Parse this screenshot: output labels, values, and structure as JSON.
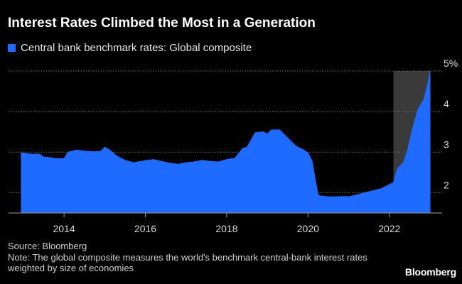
{
  "title": "Interest Rates Climbed the Most in a Generation",
  "brand": "Bloomberg",
  "footer": {
    "source": "Source: Bloomberg",
    "note": "Note: The global composite measures the world's benchmark central-bank interest rates weighted by size of economies"
  },
  "colors": {
    "background": "#000000",
    "series": "#1f6bff",
    "highlight": "#3a3a3a",
    "gridline": "#707070",
    "axis": "#9a9a9a",
    "text": "#d9d9d9"
  },
  "chart_data": {
    "type": "area",
    "title": "Interest Rates Climbed the Most in a Generation",
    "xlabel": "",
    "ylabel": "",
    "xlim": [
      2012.9,
      2023.1
    ],
    "ylim": [
      1.5,
      5.0
    ],
    "grid": true,
    "gridlines": [
      2,
      3,
      4,
      5
    ],
    "yticks": [
      {
        "value": 5,
        "label": "5%"
      },
      {
        "value": 4,
        "label": "4"
      },
      {
        "value": 3,
        "label": "3"
      },
      {
        "value": 2,
        "label": "2"
      }
    ],
    "xticks": [
      {
        "value": 2014,
        "label": "2014"
      },
      {
        "value": 2016,
        "label": "2016"
      },
      {
        "value": 2018,
        "label": "2018"
      },
      {
        "value": 2020,
        "label": "2020"
      },
      {
        "value": 2022,
        "label": "2022"
      }
    ],
    "highlight_range": [
      2022.1,
      2023.0
    ],
    "legend_placement": "top-left",
    "series": [
      {
        "name": "Central bank benchmark rates: Global composite",
        "x": [
          2012.95,
          2013.2,
          2013.4,
          2013.5,
          2013.7,
          2013.8,
          2014.0,
          2014.1,
          2014.3,
          2014.5,
          2014.7,
          2014.9,
          2015.0,
          2015.1,
          2015.3,
          2015.5,
          2015.7,
          2016.0,
          2016.2,
          2016.4,
          2016.6,
          2016.8,
          2017.0,
          2017.2,
          2017.4,
          2017.6,
          2017.8,
          2018.0,
          2018.2,
          2018.4,
          2018.5,
          2018.7,
          2018.9,
          2019.0,
          2019.1,
          2019.3,
          2019.5,
          2019.7,
          2019.9,
          2020.0,
          2020.1,
          2020.2,
          2020.25,
          2020.3,
          2020.5,
          2020.7,
          2020.9,
          2021.0,
          2021.2,
          2021.4,
          2021.6,
          2021.8,
          2022.0,
          2022.1,
          2022.2,
          2022.35,
          2022.45,
          2022.55,
          2022.7,
          2022.85,
          2022.95,
          2023.0
        ],
        "values": [
          2.98,
          2.95,
          2.95,
          2.88,
          2.86,
          2.84,
          2.84,
          3.0,
          3.05,
          3.03,
          3.01,
          3.02,
          3.12,
          3.07,
          2.9,
          2.8,
          2.74,
          2.79,
          2.82,
          2.77,
          2.73,
          2.7,
          2.74,
          2.76,
          2.8,
          2.77,
          2.76,
          2.82,
          2.85,
          3.1,
          3.12,
          3.48,
          3.5,
          3.45,
          3.55,
          3.55,
          3.35,
          3.15,
          3.05,
          2.98,
          2.78,
          2.2,
          1.95,
          1.92,
          1.9,
          1.9,
          1.91,
          1.9,
          1.95,
          2.0,
          2.05,
          2.1,
          2.2,
          2.25,
          2.6,
          2.75,
          3.05,
          3.5,
          4.05,
          4.3,
          4.7,
          5.0
        ]
      }
    ]
  }
}
